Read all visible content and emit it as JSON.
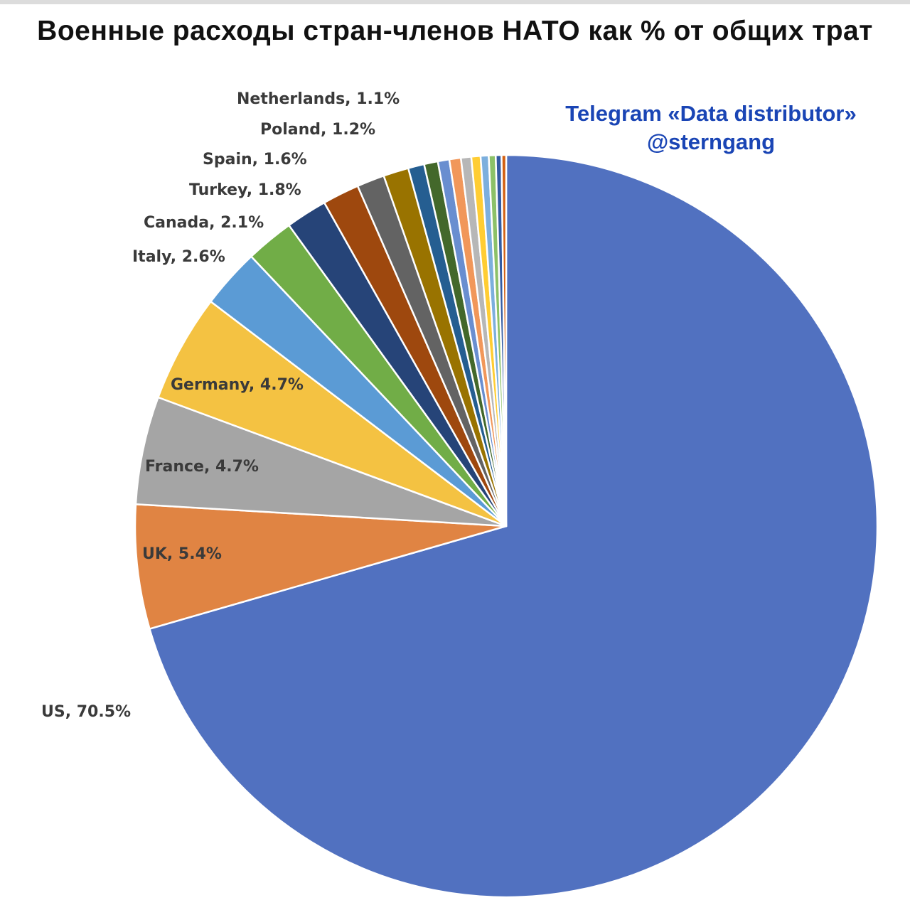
{
  "title": "Военные расходы стран-членов НАТО как % от общих трат",
  "watermark": {
    "line1": "Telegram «Data distributor»",
    "line2": "@sterngang"
  },
  "chart_data": {
    "type": "pie",
    "title": "Военные расходы стран-членов НАТО как % от общих трат",
    "slices": [
      {
        "label": "US, 70.5%",
        "value": 70.5,
        "color": "#5171c0"
      },
      {
        "label": "UK, 5.4%",
        "value": 5.4,
        "color": "#e08443"
      },
      {
        "label": "France, 4.7%",
        "value": 4.7,
        "color": "#a5a5a5"
      },
      {
        "label": "Germany, 4.7%",
        "value": 4.7,
        "color": "#f4c242"
      },
      {
        "label": "Italy, 2.6%",
        "value": 2.6,
        "color": "#5b9bd5"
      },
      {
        "label": "Canada, 2.1%",
        "value": 2.1,
        "color": "#71ad47"
      },
      {
        "label": "Turkey, 1.8%",
        "value": 1.8,
        "color": "#264478"
      },
      {
        "label": "Spain, 1.6%",
        "value": 1.6,
        "color": "#9e480e"
      },
      {
        "label": "Poland, 1.2%",
        "value": 1.2,
        "color": "#636363"
      },
      {
        "label": "Netherlands, 1.1%",
        "value": 1.1,
        "color": "#997300"
      },
      {
        "label": "",
        "value": 0.7,
        "color": "#255e91"
      },
      {
        "label": "",
        "value": 0.6,
        "color": "#43682b"
      },
      {
        "label": "",
        "value": 0.5,
        "color": "#698ed0"
      },
      {
        "label": "",
        "value": 0.5,
        "color": "#f1975a"
      },
      {
        "label": "",
        "value": 0.45,
        "color": "#b7b7b7"
      },
      {
        "label": "",
        "value": 0.4,
        "color": "#ffcd33"
      },
      {
        "label": "",
        "value": 0.35,
        "color": "#7cafdd"
      },
      {
        "label": "",
        "value": 0.3,
        "color": "#8cc168"
      },
      {
        "label": "",
        "value": 0.25,
        "color": "#335aa1"
      },
      {
        "label": "",
        "value": 0.2,
        "color": "#d26012"
      }
    ]
  }
}
